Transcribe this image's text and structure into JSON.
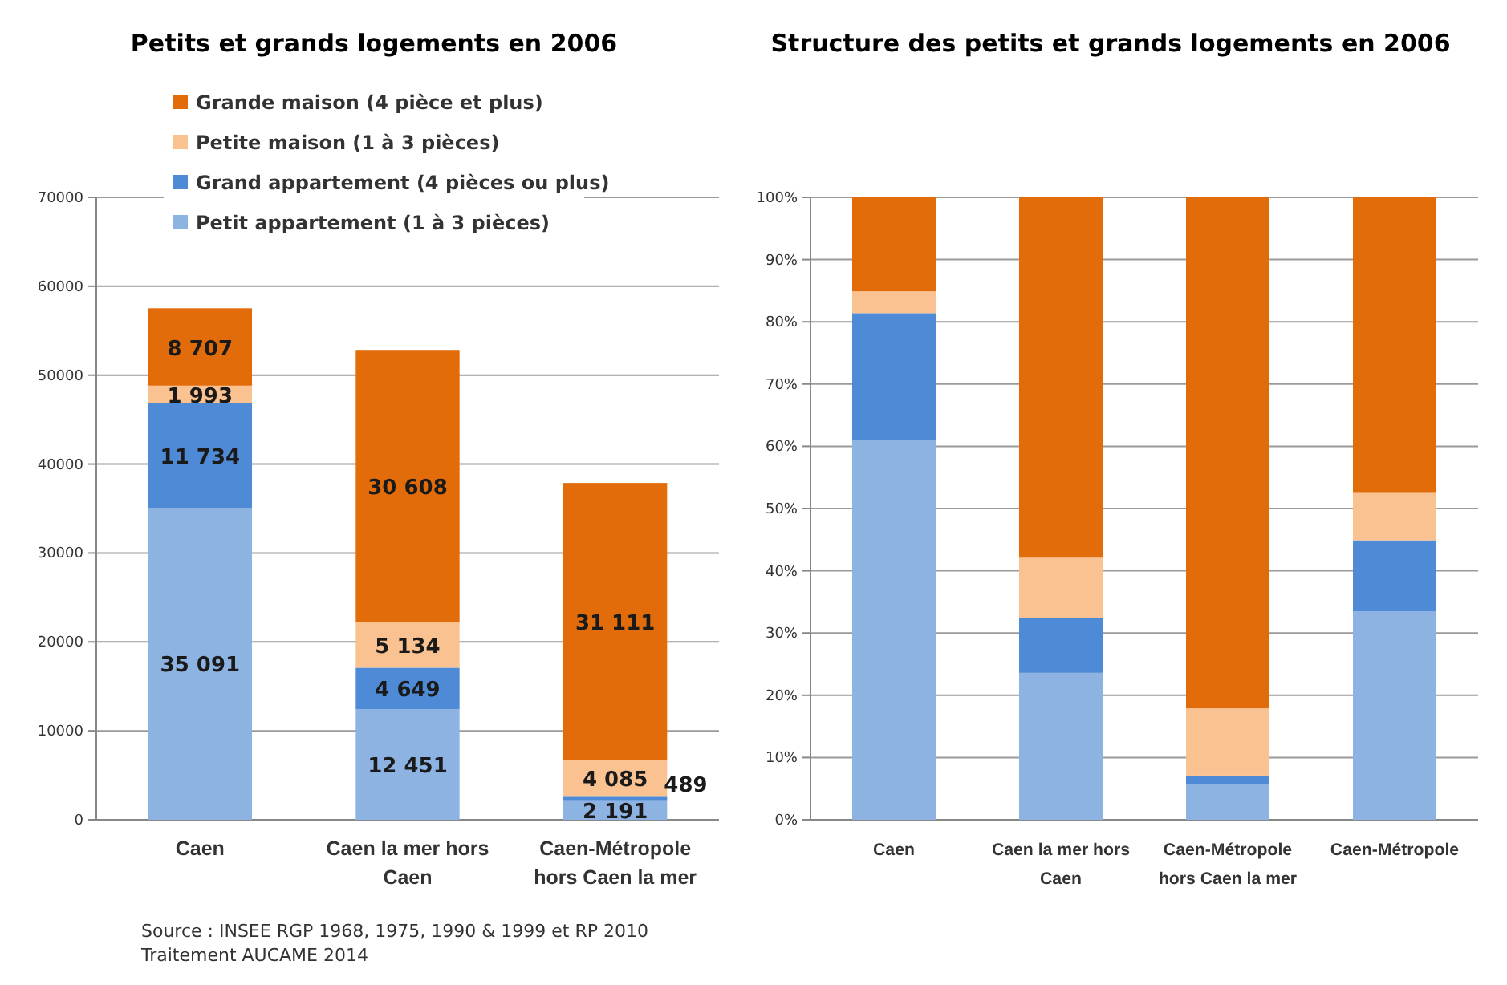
{
  "chart_data": [
    {
      "type": "bar",
      "stacked": true,
      "title": "Petits et grands logements en 2006",
      "categories": [
        "Caen",
        "Caen la mer hors Caen",
        "Caen-Métropole hors Caen la mer"
      ],
      "series": [
        {
          "name": "Petit appartement (1 à 3 pièces)",
          "color": "#8db3e2",
          "values": [
            35091,
            12451,
            2191
          ],
          "value_labels": [
            "35 091",
            "12 451",
            "2 191"
          ]
        },
        {
          "name": "Grand appartement (4 pièces ou plus)",
          "color": "#4f8ad6",
          "values": [
            11734,
            4649,
            489
          ],
          "value_labels": [
            "11 734",
            "4 649",
            "489"
          ]
        },
        {
          "name": "Petite maison (1 à 3 pièces)",
          "color": "#fac191",
          "values": [
            1993,
            5134,
            4085
          ],
          "value_labels": [
            "1 993",
            "5 134",
            "4 085"
          ]
        },
        {
          "name": "Grande maison (4 pièce et plus)",
          "color": "#e36c0a",
          "values": [
            8707,
            30608,
            31111
          ],
          "value_labels": [
            "8 707",
            "30 608",
            "31 111"
          ]
        }
      ],
      "ylim": [
        0,
        70000
      ],
      "yticks": [
        0,
        10000,
        20000,
        30000,
        40000,
        50000,
        60000,
        70000
      ],
      "grid": "y",
      "legend": "top",
      "annotations": [
        "Source : INSEE  RGP 1968, 1975, 1990 & 1999 et RP 2010",
        "Traitement AUCAME 2014"
      ]
    },
    {
      "type": "bar",
      "stacked": true,
      "title": "Structure des petits et grands logements en 2006",
      "categories": [
        "Caen",
        "Caen la mer hors Caen",
        "Caen-Métropole hors Caen la mer",
        "Caen-Métropole"
      ],
      "series": [
        {
          "color": "#8db3e2",
          "values": [
            61.0,
            23.6,
            5.8,
            33.5
          ]
        },
        {
          "color": "#4f8ad6",
          "values": [
            20.4,
            8.8,
            1.3,
            11.4
          ]
        },
        {
          "color": "#fac191",
          "values": [
            3.5,
            9.7,
            10.8,
            7.6
          ]
        },
        {
          "color": "#e36c0a",
          "values": [
            15.1,
            57.9,
            82.1,
            47.5
          ]
        }
      ],
      "ylim": [
        0,
        100
      ],
      "yticks": [
        {
          "value": 0,
          "label": "0%"
        },
        {
          "value": 10,
          "label": "10%"
        },
        {
          "value": 20,
          "label": "20%"
        },
        {
          "value": 30,
          "label": "30%"
        },
        {
          "value": 40,
          "label": "40%"
        },
        {
          "value": 50,
          "label": "50%"
        },
        {
          "value": 60,
          "label": "60%"
        },
        {
          "value": 70,
          "label": "70%"
        },
        {
          "value": 80,
          "label": "80%"
        },
        {
          "value": 90,
          "label": "90%"
        },
        {
          "value": 100,
          "label": "100%"
        }
      ],
      "grid": "y"
    }
  ]
}
